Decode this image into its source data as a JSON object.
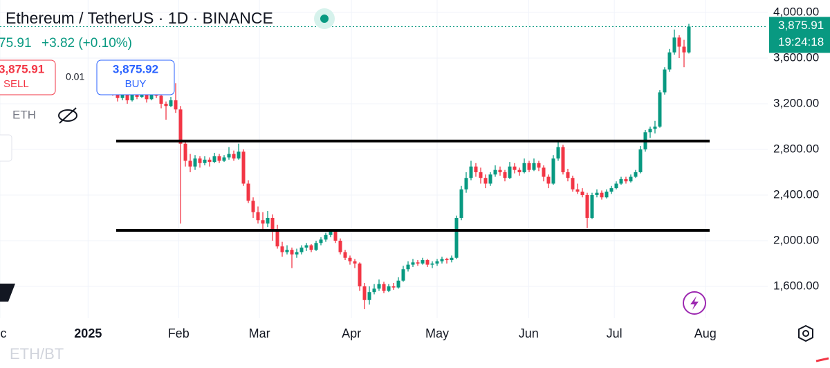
{
  "header": {
    "title": "Ethereum / TetherUS · 1D · BINANCE",
    "last": "75.91",
    "change": "+3.82 (+0.10%)",
    "sell_price": "3,875.91",
    "sell_label": "SELL",
    "spread": "0.01",
    "buy_price": "3,875.92",
    "buy_label": "BUY",
    "volume_label": "ETH"
  },
  "chart_data": {
    "type": "candlestick",
    "up_color": "#089981",
    "down_color": "#f23645",
    "grid": true,
    "ylim": [
      1321,
      4109
    ],
    "yticks": [
      {
        "value": 1600,
        "label": "1,600.00"
      },
      {
        "value": 2000,
        "label": "2,000.00"
      },
      {
        "value": 2400,
        "label": "2,400.00"
      },
      {
        "value": 2800,
        "label": "2,800.00"
      },
      {
        "value": 3200,
        "label": "3,200.00"
      },
      {
        "value": 3600,
        "label": "3,600.00"
      },
      {
        "value": 4000,
        "label": "4,000.00"
      }
    ],
    "xlim": [
      -23.29,
      135.29
    ],
    "xticks": [
      {
        "value": -23.3,
        "label": "ec"
      },
      {
        "value": -5.1,
        "label": "2025"
      },
      {
        "value": 13.6,
        "label": "Feb"
      },
      {
        "value": 30.3,
        "label": "Mar"
      },
      {
        "value": 49.3,
        "label": "Apr"
      },
      {
        "value": 67,
        "label": "May"
      },
      {
        "value": 85.9,
        "label": "Jun"
      },
      {
        "value": 103.6,
        "label": "Jul"
      },
      {
        "value": 122.4,
        "label": "Aug"
      }
    ],
    "levels": [
      2873,
      2091
    ],
    "last_price": {
      "value": 3875.91,
      "label": "3,875.91"
    },
    "countdown": "19:24:18",
    "candles": [
      [
        3320,
        3350,
        3270,
        3300
      ],
      [
        3300,
        3330,
        3220,
        3250
      ],
      [
        3250,
        3310,
        3230,
        3280
      ],
      [
        3280,
        3300,
        3200,
        3230
      ],
      [
        3230,
        3340,
        3220,
        3310
      ],
      [
        3310,
        3330,
        3240,
        3260
      ],
      [
        3260,
        3320,
        3250,
        3290
      ],
      [
        3290,
        3300,
        3210,
        3240
      ],
      [
        3240,
        3330,
        3230,
        3300
      ],
      [
        3300,
        3320,
        3250,
        3270
      ],
      [
        3270,
        3280,
        3160,
        3200
      ],
      [
        3200,
        3220,
        3060,
        3180
      ],
      [
        3180,
        3260,
        3170,
        3230
      ],
      [
        3230,
        3380,
        3120,
        3150
      ],
      [
        3150,
        3180,
        2150,
        2850
      ],
      [
        2850,
        2880,
        2650,
        2700
      ],
      [
        2700,
        2760,
        2600,
        2650
      ],
      [
        2650,
        2750,
        2620,
        2720
      ],
      [
        2720,
        2740,
        2640,
        2680
      ],
      [
        2680,
        2740,
        2660,
        2710
      ],
      [
        2710,
        2730,
        2650,
        2690
      ],
      [
        2690,
        2770,
        2680,
        2740
      ],
      [
        2740,
        2760,
        2680,
        2700
      ],
      [
        2700,
        2750,
        2690,
        2730
      ],
      [
        2730,
        2820,
        2710,
        2760
      ],
      [
        2760,
        2790,
        2700,
        2720
      ],
      [
        2720,
        2850,
        2710,
        2780
      ],
      [
        2780,
        2800,
        2480,
        2500
      ],
      [
        2500,
        2530,
        2330,
        2350
      ],
      [
        2350,
        2380,
        2200,
        2250
      ],
      [
        2250,
        2300,
        2150,
        2180
      ],
      [
        2180,
        2250,
        2100,
        2150
      ],
      [
        2150,
        2260,
        2120,
        2200
      ],
      [
        2200,
        2230,
        2000,
        2100
      ],
      [
        2100,
        2140,
        1930,
        1950
      ],
      [
        1950,
        1990,
        1860,
        1900
      ],
      [
        1900,
        1960,
        1880,
        1920
      ],
      [
        1920,
        1940,
        1760,
        1880
      ],
      [
        1880,
        1930,
        1850,
        1900
      ],
      [
        1900,
        1960,
        1880,
        1940
      ],
      [
        1940,
        1980,
        1910,
        1960
      ],
      [
        1960,
        1970,
        1900,
        1920
      ],
      [
        1920,
        2000,
        1910,
        1980
      ],
      [
        1980,
        2030,
        1960,
        2010
      ],
      [
        2010,
        2070,
        1990,
        2050
      ],
      [
        2050,
        2100,
        2030,
        2080
      ],
      [
        2080,
        2090,
        1980,
        2000
      ],
      [
        2000,
        2020,
        1880,
        1900
      ],
      [
        1900,
        1920,
        1830,
        1850
      ],
      [
        1850,
        1870,
        1790,
        1820
      ],
      [
        1820,
        1840,
        1760,
        1800
      ],
      [
        1800,
        1810,
        1560,
        1600
      ],
      [
        1600,
        1630,
        1400,
        1480
      ],
      [
        1480,
        1600,
        1440,
        1550
      ],
      [
        1550,
        1620,
        1530,
        1580
      ],
      [
        1580,
        1660,
        1560,
        1620
      ],
      [
        1620,
        1640,
        1540,
        1560
      ],
      [
        1560,
        1620,
        1550,
        1600
      ],
      [
        1600,
        1630,
        1570,
        1590
      ],
      [
        1590,
        1680,
        1580,
        1650
      ],
      [
        1650,
        1780,
        1640,
        1750
      ],
      [
        1750,
        1820,
        1730,
        1790
      ],
      [
        1790,
        1840,
        1770,
        1810
      ],
      [
        1810,
        1830,
        1780,
        1800
      ],
      [
        1800,
        1850,
        1790,
        1830
      ],
      [
        1830,
        1840,
        1770,
        1790
      ],
      [
        1790,
        1820,
        1760,
        1800
      ],
      [
        1800,
        1840,
        1780,
        1820
      ],
      [
        1820,
        1860,
        1800,
        1840
      ],
      [
        1840,
        1850,
        1800,
        1830
      ],
      [
        1830,
        1870,
        1810,
        1850
      ],
      [
        1850,
        2220,
        1840,
        2200
      ],
      [
        2200,
        2480,
        2180,
        2450
      ],
      [
        2450,
        2600,
        2420,
        2550
      ],
      [
        2550,
        2700,
        2530,
        2650
      ],
      [
        2650,
        2680,
        2560,
        2600
      ],
      [
        2600,
        2640,
        2500,
        2550
      ],
      [
        2550,
        2580,
        2460,
        2500
      ],
      [
        2500,
        2600,
        2480,
        2580
      ],
      [
        2580,
        2660,
        2560,
        2620
      ],
      [
        2620,
        2650,
        2570,
        2600
      ],
      [
        2600,
        2620,
        2520,
        2550
      ],
      [
        2550,
        2690,
        2540,
        2650
      ],
      [
        2650,
        2680,
        2590,
        2620
      ],
      [
        2620,
        2640,
        2570,
        2600
      ],
      [
        2600,
        2720,
        2590,
        2680
      ],
      [
        2680,
        2700,
        2600,
        2620
      ],
      [
        2620,
        2720,
        2610,
        2680
      ],
      [
        2680,
        2700,
        2610,
        2640
      ],
      [
        2640,
        2660,
        2520,
        2560
      ],
      [
        2560,
        2580,
        2460,
        2500
      ],
      [
        2500,
        2750,
        2490,
        2720
      ],
      [
        2720,
        2880,
        2700,
        2820
      ],
      [
        2820,
        2840,
        2580,
        2600
      ],
      [
        2600,
        2630,
        2520,
        2550
      ],
      [
        2550,
        2570,
        2430,
        2450
      ],
      [
        2450,
        2500,
        2410,
        2430
      ],
      [
        2430,
        2460,
        2380,
        2400
      ],
      [
        2400,
        2420,
        2110,
        2200
      ],
      [
        2200,
        2420,
        2190,
        2400
      ],
      [
        2400,
        2450,
        2380,
        2420
      ],
      [
        2420,
        2440,
        2360,
        2380
      ],
      [
        2380,
        2450,
        2370,
        2430
      ],
      [
        2430,
        2480,
        2410,
        2460
      ],
      [
        2460,
        2520,
        2450,
        2500
      ],
      [
        2500,
        2560,
        2490,
        2540
      ],
      [
        2540,
        2560,
        2500,
        2520
      ],
      [
        2520,
        2580,
        2510,
        2560
      ],
      [
        2560,
        2620,
        2550,
        2600
      ],
      [
        2600,
        2830,
        2590,
        2800
      ],
      [
        2800,
        2970,
        2780,
        2950
      ],
      [
        2950,
        3000,
        2900,
        2980
      ],
      [
        2980,
        3050,
        2940,
        3000
      ],
      [
        3000,
        3320,
        2990,
        3300
      ],
      [
        3300,
        3520,
        3280,
        3500
      ],
      [
        3500,
        3680,
        3480,
        3650
      ],
      [
        3650,
        3850,
        3630,
        3780
      ],
      [
        3780,
        3800,
        3600,
        3700
      ],
      [
        3700,
        3760,
        3520,
        3650
      ],
      [
        3650,
        3900,
        3640,
        3875.91
      ]
    ]
  },
  "footer": {
    "symbol": "ETH/BT"
  }
}
